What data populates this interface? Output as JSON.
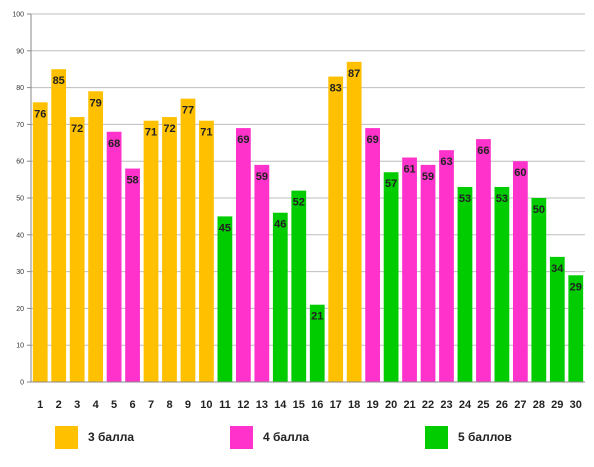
{
  "chart_data": {
    "type": "bar",
    "categories": [
      "1",
      "2",
      "3",
      "4",
      "5",
      "6",
      "7",
      "8",
      "9",
      "10",
      "11",
      "12",
      "13",
      "14",
      "15",
      "16",
      "17",
      "18",
      "19",
      "20",
      "21",
      "22",
      "23",
      "24",
      "25",
      "26",
      "27",
      "28",
      "29",
      "30"
    ],
    "values": [
      76,
      85,
      72,
      79,
      68,
      58,
      71,
      72,
      77,
      71,
      45,
      69,
      59,
      46,
      52,
      21,
      83,
      87,
      69,
      57,
      61,
      59,
      63,
      53,
      66,
      53,
      60,
      50,
      34,
      29
    ],
    "groups": [
      "3",
      "3",
      "3",
      "3",
      "4",
      "4",
      "3",
      "3",
      "3",
      "3",
      "5",
      "4",
      "4",
      "5",
      "5",
      "5",
      "3",
      "3",
      "4",
      "5",
      "4",
      "4",
      "4",
      "5",
      "4",
      "5",
      "4",
      "5",
      "5",
      "5"
    ],
    "ylim": [
      0,
      100
    ],
    "yticks": [
      0,
      10,
      20,
      30,
      40,
      50,
      60,
      70,
      80,
      90,
      100
    ],
    "grid": true,
    "legend_placement": "bottom",
    "series": [
      {
        "key": "3",
        "name": "3 балла",
        "color": "#FFC000"
      },
      {
        "key": "4",
        "name": "4 балла",
        "color": "#FF33CC"
      },
      {
        "key": "5",
        "name": "5 баллов",
        "color": "#00CC00"
      }
    ]
  }
}
